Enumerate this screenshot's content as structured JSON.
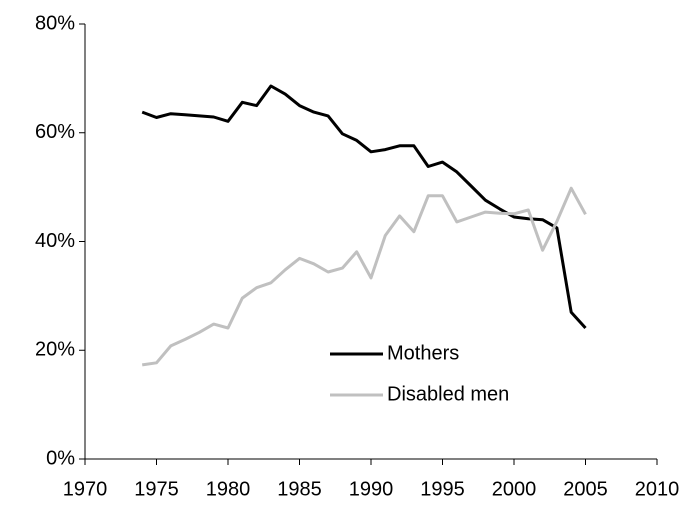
{
  "chart_data": {
    "type": "line",
    "x": [
      1974,
      1975,
      1976,
      1977,
      1978,
      1979,
      1980,
      1981,
      1982,
      1983,
      1984,
      1985,
      1986,
      1987,
      1988,
      1989,
      1990,
      1991,
      1992,
      1993,
      1994,
      1995,
      1996,
      1997,
      1998,
      1999,
      2000,
      2001,
      2002,
      2003,
      2004,
      2005
    ],
    "series": [
      {
        "name": "Mothers",
        "color": "#000000",
        "values": [
          63.8,
          62.8,
          63.5,
          63.3,
          63.1,
          62.9,
          62.1,
          65.6,
          65.0,
          68.6,
          67.1,
          65.0,
          63.8,
          63.1,
          59.8,
          58.6,
          56.5,
          56.9,
          57.6,
          57.6,
          53.8,
          54.6,
          52.8,
          50.2,
          47.6,
          46.0,
          44.5,
          44.2,
          44.0,
          42.5,
          27.0,
          24.1
        ]
      },
      {
        "name": "Disabled men",
        "color": "#c0c0c0",
        "values": [
          17.3,
          17.7,
          20.8,
          22.0,
          23.3,
          24.8,
          24.1,
          29.6,
          31.5,
          32.4,
          34.8,
          36.9,
          35.9,
          34.4,
          35.1,
          38.1,
          33.3,
          41.1,
          44.7,
          41.8,
          48.4,
          48.4,
          43.6,
          44.5,
          45.4,
          45.2,
          45.1,
          45.8,
          38.4,
          43.7,
          49.8,
          45.0
        ]
      }
    ],
    "xlim": [
      1970,
      2010
    ],
    "xticks": [
      1970,
      1975,
      1980,
      1985,
      1990,
      1995,
      2000,
      2005,
      2010
    ],
    "ylim": [
      0,
      80
    ],
    "yticks": [
      {
        "value": 0,
        "label": "0%"
      },
      {
        "value": 20,
        "label": "20%"
      },
      {
        "value": 40,
        "label": "40%"
      },
      {
        "value": 60,
        "label": "60%"
      },
      {
        "value": 80,
        "label": "80%"
      }
    ],
    "grid": false
  }
}
